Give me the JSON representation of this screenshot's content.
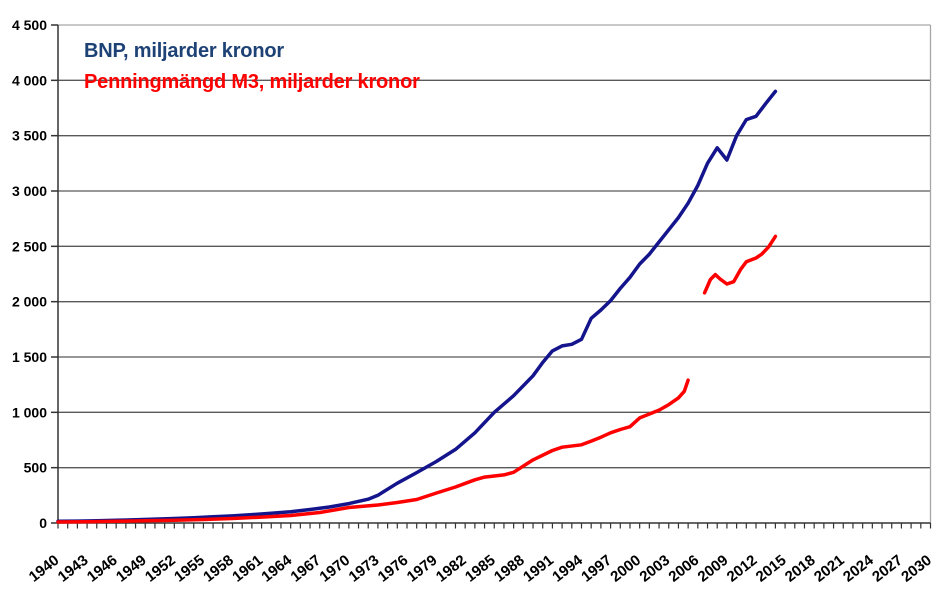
{
  "chart_data": {
    "type": "line",
    "title": "",
    "legend": [
      {
        "label": "BNP, miljarder kronor",
        "color": "#1E4276"
      },
      {
        "label": "Penningmängd M3, miljarder kronor",
        "color": "#FF0000"
      }
    ],
    "legend_position": "top-left-inside",
    "grid": true,
    "x_axis": {
      "min": 1940,
      "max": 2030,
      "minor_tick_step": 1,
      "label_step": 3,
      "labels": [
        "1940",
        "1943",
        "1946",
        "1949",
        "1952",
        "1955",
        "1958",
        "1961",
        "1964",
        "1967",
        "1970",
        "1973",
        "1976",
        "1979",
        "1982",
        "1985",
        "1988",
        "1991",
        "1994",
        "1997",
        "2000",
        "2003",
        "2006",
        "2009",
        "2012",
        "2015",
        "2018",
        "2021",
        "2024",
        "2027",
        "2030"
      ]
    },
    "y_axis": {
      "min": 0,
      "max": 4500,
      "tick_step": 500,
      "labels": [
        "0",
        "500",
        "1 000",
        "1 500",
        "2 000",
        "2 500",
        "3 000",
        "3 500",
        "4 000",
        "4 500"
      ]
    },
    "series": [
      {
        "name": "BNP, miljarder kronor",
        "color": "#14148C",
        "segments": [
          [
            [
              1940,
              15
            ],
            [
              1942,
              17
            ],
            [
              1944,
              20
            ],
            [
              1946,
              24
            ],
            [
              1948,
              29
            ],
            [
              1950,
              35
            ],
            [
              1952,
              41
            ],
            [
              1954,
              48
            ],
            [
              1956,
              56
            ],
            [
              1958,
              64
            ],
            [
              1960,
              76
            ],
            [
              1962,
              88
            ],
            [
              1964,
              102
            ],
            [
              1966,
              122
            ],
            [
              1968,
              145
            ],
            [
              1970,
              175
            ],
            [
              1972,
              215
            ],
            [
              1973,
              250
            ],
            [
              1975,
              360
            ],
            [
              1977,
              455
            ],
            [
              1979,
              555
            ],
            [
              1981,
              665
            ],
            [
              1983,
              815
            ],
            [
              1985,
              1000
            ],
            [
              1987,
              1150
            ],
            [
              1989,
              1330
            ],
            [
              1990,
              1450
            ],
            [
              1991,
              1555
            ],
            [
              1992,
              1600
            ],
            [
              1993,
              1615
            ],
            [
              1994,
              1660
            ],
            [
              1995,
              1850
            ],
            [
              1996,
              1925
            ],
            [
              1997,
              2010
            ],
            [
              1998,
              2120
            ],
            [
              1999,
              2220
            ],
            [
              2000,
              2340
            ],
            [
              2001,
              2430
            ],
            [
              2002,
              2540
            ],
            [
              2003,
              2650
            ],
            [
              2004,
              2760
            ],
            [
              2005,
              2890
            ],
            [
              2006,
              3050
            ],
            [
              2007,
              3250
            ],
            [
              2008,
              3390
            ],
            [
              2009,
              3280
            ],
            [
              2010,
              3500
            ],
            [
              2011,
              3645
            ],
            [
              2012,
              3675
            ],
            [
              2013,
              3790
            ],
            [
              2014,
              3900
            ]
          ]
        ]
      },
      {
        "name": "Penningmängd M3, miljarder kronor",
        "color": "#FF0000",
        "segments": [
          [
            [
              1940,
              9
            ],
            [
              1943,
              12
            ],
            [
              1946,
              15
            ],
            [
              1949,
              20
            ],
            [
              1952,
              25
            ],
            [
              1955,
              32
            ],
            [
              1958,
              41
            ],
            [
              1961,
              53
            ],
            [
              1964,
              68
            ],
            [
              1967,
              95
            ],
            [
              1970,
              140
            ],
            [
              1973,
              163
            ],
            [
              1975,
              185
            ],
            [
              1977,
              212
            ],
            [
              1979,
              270
            ],
            [
              1981,
              325
            ],
            [
              1983,
              390
            ],
            [
              1984,
              415
            ],
            [
              1986,
              435
            ],
            [
              1987,
              458
            ],
            [
              1989,
              570
            ],
            [
              1991,
              655
            ],
            [
              1992,
              685
            ],
            [
              1994,
              707
            ],
            [
              1995,
              740
            ],
            [
              1996,
              775
            ],
            [
              1997,
              815
            ],
            [
              1998,
              845
            ],
            [
              1999,
              870
            ],
            [
              2000,
              950
            ],
            [
              2001,
              985
            ],
            [
              2002,
              1020
            ],
            [
              2003,
              1070
            ],
            [
              2004,
              1130
            ],
            [
              2004.6,
              1190
            ],
            [
              2005,
              1290
            ]
          ],
          [
            [
              2006.7,
              2080
            ],
            [
              2007.3,
              2200
            ],
            [
              2007.8,
              2245
            ],
            [
              2008.3,
              2205
            ],
            [
              2009,
              2160
            ],
            [
              2009.7,
              2180
            ],
            [
              2010.4,
              2290
            ],
            [
              2011,
              2360
            ],
            [
              2012,
              2395
            ],
            [
              2012.6,
              2430
            ],
            [
              2013.3,
              2495
            ],
            [
              2014,
              2590
            ]
          ]
        ]
      }
    ]
  },
  "colors": {
    "background": "#FFFFFF",
    "gridline": "#595959",
    "plot_border": "#A6A6A6",
    "axis": "#333333",
    "tick_label": "#000000"
  }
}
